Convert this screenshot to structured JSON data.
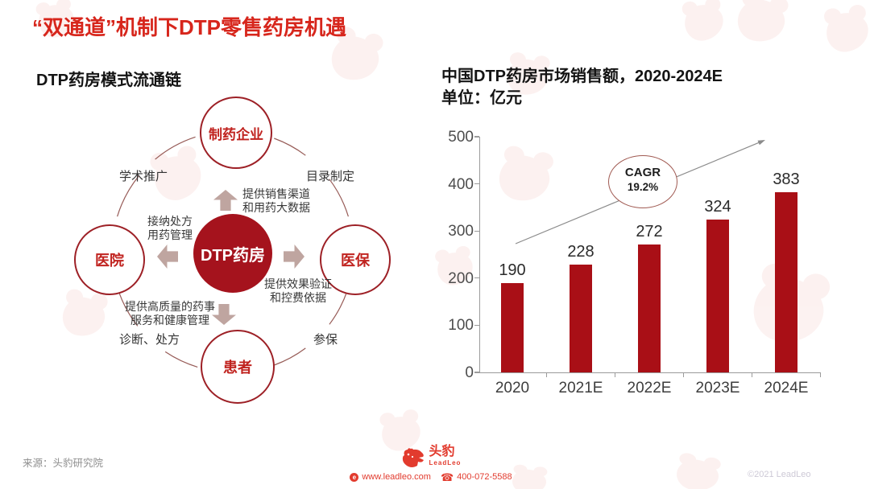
{
  "page": {
    "title": "“双通道”机制下DTP零售药房机遇",
    "source": "来源：头豹研究院",
    "copyright": "©2021 LeadLeo"
  },
  "diagram": {
    "heading": "DTP药房模式流通链",
    "center_node": "DTP药房",
    "nodes": {
      "top": "制药企业",
      "left": "医院",
      "right": "医保",
      "bottom": "患者"
    },
    "edge_labels": {
      "top_left": "学术推广",
      "top_right": "目录制定",
      "bottom_left": "诊断、处方",
      "bottom_right": "参保"
    },
    "arrow_labels": {
      "up": "提供销售渠道\n和用药大数据",
      "left": "接纳处方\n用药管理",
      "right": "提供效果验证\n和控费依据",
      "down": "提供高质量的药事\n服务和健康管理"
    }
  },
  "chart_data": {
    "type": "bar",
    "title": "中国DTP药房市场销售额，2020-2024E",
    "unit_label": "单位：亿元",
    "categories": [
      "2020",
      "2021E",
      "2022E",
      "2023E",
      "2024E"
    ],
    "values": [
      190,
      228,
      272,
      324,
      383
    ],
    "ylim": [
      0,
      500
    ],
    "yticks": [
      0,
      100,
      200,
      300,
      400,
      500
    ],
    "bar_color": "#a90f16",
    "grid": false,
    "legend": null,
    "annotation": {
      "label": "CAGR",
      "value": "19.2%"
    }
  },
  "footer": {
    "brand": "头豹",
    "brand_sub": "LeadLeo",
    "website": "www.leadleo.com",
    "phone": "400-072-5588"
  },
  "icons": {
    "globe": "e",
    "phone": "☎"
  },
  "colors": {
    "accent_red": "#d7261c",
    "bar_red": "#a90f16",
    "deep_red": "#a5131d",
    "arrow_gray": "#bfa5a0"
  }
}
